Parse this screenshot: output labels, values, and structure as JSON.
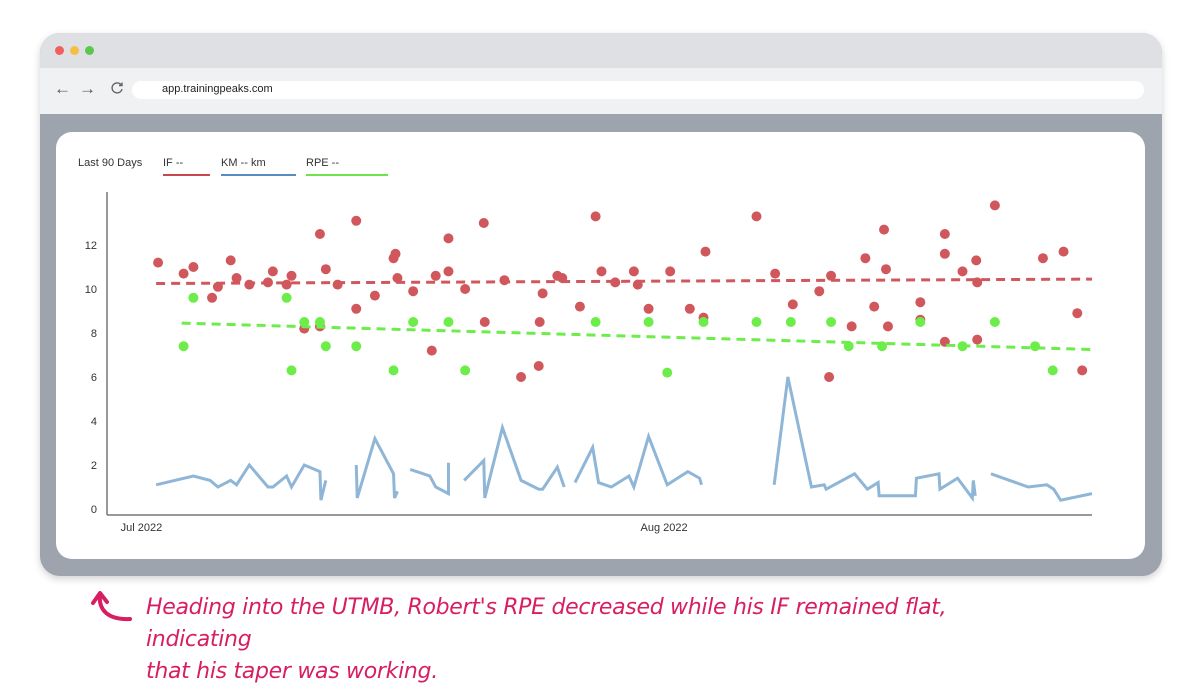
{
  "browser": {
    "window_controls": [
      {
        "name": "close",
        "color": "#f0605b"
      },
      {
        "name": "minimize",
        "color": "#f6be43"
      },
      {
        "name": "maximize",
        "color": "#59c84b"
      }
    ],
    "nav": {
      "back_icon": "←",
      "forward_icon": "→",
      "reload_icon": "C"
    },
    "url": "app.trainingpeaks.com"
  },
  "legend": {
    "range_label": "Last 90 Days",
    "items": [
      {
        "label": "IF  --",
        "color": "#c9474e"
      },
      {
        "label": "KM -- km",
        "color": "#5b8bc0"
      },
      {
        "label": "RPE --",
        "color": "#6fe34a"
      }
    ]
  },
  "annotation": {
    "text_line1": "Heading into the UTMB, Robert's RPE decreased while his IF remained flat, indicating",
    "text_line2": "that his taper was working.",
    "color": "#d81e62"
  },
  "chart_data": {
    "type": "scatter",
    "title": "",
    "xlabel": "",
    "ylabel": "",
    "x_tick_labels": [
      {
        "label": "Jul 2022",
        "x": 0.02
      },
      {
        "label": "Aug 2022",
        "x": 0.55
      }
    ],
    "y_ticks": [
      0,
      2,
      4,
      6,
      8,
      10,
      12
    ],
    "ylim": [
      0,
      14.2
    ],
    "xlim": [
      0,
      1
    ],
    "grid": false,
    "series": [
      {
        "name": "IF",
        "kind": "scatter",
        "color": "#d0585d",
        "points": [
          [
            0.048,
            11.2
          ],
          [
            0.074,
            10.7
          ],
          [
            0.084,
            11.0
          ],
          [
            0.103,
            9.6
          ],
          [
            0.109,
            10.1
          ],
          [
            0.122,
            11.3
          ],
          [
            0.128,
            10.5
          ],
          [
            0.141,
            10.2
          ],
          [
            0.16,
            10.3
          ],
          [
            0.165,
            10.8
          ],
          [
            0.179,
            10.2
          ],
          [
            0.184,
            10.6
          ],
          [
            0.197,
            8.2
          ],
          [
            0.213,
            12.5
          ],
          [
            0.213,
            8.3
          ],
          [
            0.219,
            10.9
          ],
          [
            0.231,
            10.2
          ],
          [
            0.25,
            9.1
          ],
          [
            0.25,
            13.1
          ],
          [
            0.269,
            9.7
          ],
          [
            0.288,
            11.4
          ],
          [
            0.29,
            11.6
          ],
          [
            0.292,
            10.5
          ],
          [
            0.308,
            9.9
          ],
          [
            0.327,
            7.2
          ],
          [
            0.331,
            10.6
          ],
          [
            0.344,
            10.8
          ],
          [
            0.344,
            12.3
          ],
          [
            0.361,
            10.0
          ],
          [
            0.38,
            13.0
          ],
          [
            0.381,
            8.5
          ],
          [
            0.401,
            10.4
          ],
          [
            0.418,
            6.0
          ],
          [
            0.436,
            6.5
          ],
          [
            0.437,
            8.5
          ],
          [
            0.44,
            9.8
          ],
          [
            0.455,
            10.6
          ],
          [
            0.46,
            10.5
          ],
          [
            0.478,
            9.2
          ],
          [
            0.494,
            13.3
          ],
          [
            0.5,
            10.8
          ],
          [
            0.514,
            10.3
          ],
          [
            0.533,
            10.8
          ],
          [
            0.537,
            10.2
          ],
          [
            0.548,
            9.1
          ],
          [
            0.57,
            10.8
          ],
          [
            0.59,
            9.1
          ],
          [
            0.606,
            11.7
          ],
          [
            0.604,
            8.7
          ],
          [
            0.658,
            13.3
          ],
          [
            0.677,
            10.7
          ],
          [
            0.695,
            9.3
          ],
          [
            0.722,
            9.9
          ],
          [
            0.734,
            10.6
          ],
          [
            0.732,
            6.0
          ],
          [
            0.755,
            8.3
          ],
          [
            0.769,
            11.4
          ],
          [
            0.778,
            9.2
          ],
          [
            0.788,
            12.7
          ],
          [
            0.79,
            10.9
          ],
          [
            0.792,
            8.3
          ],
          [
            0.825,
            9.4
          ],
          [
            0.825,
            8.6
          ],
          [
            0.85,
            11.6
          ],
          [
            0.85,
            12.5
          ],
          [
            0.85,
            7.6
          ],
          [
            0.868,
            10.8
          ],
          [
            0.882,
            11.3
          ],
          [
            0.883,
            7.7
          ],
          [
            0.883,
            10.3
          ],
          [
            0.901,
            13.8
          ],
          [
            0.95,
            11.4
          ],
          [
            0.971,
            11.7
          ],
          [
            0.985,
            8.9
          ],
          [
            0.99,
            6.3
          ]
        ]
      },
      {
        "name": "RPE",
        "kind": "scatter",
        "color": "#6ded4a",
        "points": [
          [
            0.074,
            7.4
          ],
          [
            0.084,
            9.6
          ],
          [
            0.179,
            9.6
          ],
          [
            0.184,
            6.3
          ],
          [
            0.197,
            8.5
          ],
          [
            0.213,
            8.5
          ],
          [
            0.219,
            7.4
          ],
          [
            0.25,
            7.4
          ],
          [
            0.288,
            6.3
          ],
          [
            0.308,
            8.5
          ],
          [
            0.344,
            8.5
          ],
          [
            0.361,
            6.3
          ],
          [
            0.494,
            8.5
          ],
          [
            0.548,
            8.5
          ],
          [
            0.567,
            6.2
          ],
          [
            0.604,
            8.5
          ],
          [
            0.658,
            8.5
          ],
          [
            0.693,
            8.5
          ],
          [
            0.734,
            8.5
          ],
          [
            0.752,
            7.4
          ],
          [
            0.786,
            7.4
          ],
          [
            0.825,
            8.5
          ],
          [
            0.868,
            7.4
          ],
          [
            0.901,
            8.5
          ],
          [
            0.942,
            7.4
          ],
          [
            0.96,
            6.3
          ]
        ]
      },
      {
        "name": "IF trend",
        "kind": "trendline",
        "color": "#d0585d",
        "start": [
          0.046,
          10.25
        ],
        "end": [
          1.0,
          10.45
        ]
      },
      {
        "name": "RPE trend",
        "kind": "trendline",
        "color": "#6ded4a",
        "start": [
          0.072,
          8.45
        ],
        "end": [
          1.0,
          7.25
        ]
      },
      {
        "name": "KM",
        "kind": "line",
        "color": "#8fb6d6",
        "segments": [
          [
            [
              0.046,
              1.1
            ],
            [
              0.084,
              1.5
            ],
            [
              0.101,
              1.3
            ],
            [
              0.109,
              1.0
            ],
            [
              0.122,
              1.3
            ],
            [
              0.128,
              1.1
            ],
            [
              0.141,
              2.0
            ],
            [
              0.16,
              1.0
            ],
            [
              0.165,
              1.0
            ],
            [
              0.179,
              1.5
            ],
            [
              0.184,
              1.0
            ],
            [
              0.197,
              2.0
            ],
            [
              0.213,
              1.7
            ],
            [
              0.214,
              0.4
            ],
            [
              0.219,
              1.3
            ]
          ],
          [
            [
              0.25,
              2.0
            ],
            [
              0.251,
              0.5
            ],
            [
              0.269,
              3.2
            ],
            [
              0.288,
              1.6
            ],
            [
              0.289,
              0.5
            ],
            [
              0.292,
              0.8
            ]
          ],
          [
            [
              0.305,
              1.8
            ],
            [
              0.325,
              1.5
            ],
            [
              0.331,
              1.0
            ],
            [
              0.344,
              0.7
            ],
            [
              0.344,
              2.1
            ]
          ],
          [
            [
              0.36,
              1.3
            ],
            [
              0.38,
              2.2
            ],
            [
              0.381,
              0.5
            ],
            [
              0.399,
              3.7
            ],
            [
              0.418,
              1.3
            ],
            [
              0.436,
              0.9
            ],
            [
              0.44,
              0.9
            ],
            [
              0.455,
              1.9
            ],
            [
              0.462,
              1.0
            ]
          ],
          [
            [
              0.473,
              1.2
            ],
            [
              0.491,
              2.8
            ],
            [
              0.497,
              1.2
            ],
            [
              0.51,
              1.0
            ],
            [
              0.528,
              1.5
            ],
            [
              0.533,
              1.0
            ],
            [
              0.548,
              3.3
            ],
            [
              0.567,
              1.1
            ],
            [
              0.588,
              1.7
            ],
            [
              0.6,
              1.4
            ],
            [
              0.602,
              1.1
            ]
          ],
          [
            [
              0.676,
              1.1
            ],
            [
              0.69,
              6.0
            ],
            [
              0.714,
              1.0
            ],
            [
              0.727,
              1.1
            ],
            [
              0.729,
              0.9
            ],
            [
              0.758,
              1.6
            ],
            [
              0.771,
              0.9
            ],
            [
              0.782,
              1.2
            ],
            [
              0.783,
              0.6
            ],
            [
              0.82,
              0.6
            ],
            [
              0.821,
              1.4
            ],
            [
              0.844,
              1.6
            ],
            [
              0.845,
              0.9
            ],
            [
              0.863,
              1.4
            ],
            [
              0.878,
              0.5
            ],
            [
              0.879,
              1.3
            ],
            [
              0.881,
              0.6
            ]
          ],
          [
            [
              0.897,
              1.6
            ],
            [
              0.935,
              1.0
            ],
            [
              0.954,
              1.1
            ],
            [
              0.961,
              0.9
            ],
            [
              0.968,
              0.4
            ],
            [
              1.0,
              0.7
            ]
          ]
        ]
      }
    ]
  }
}
